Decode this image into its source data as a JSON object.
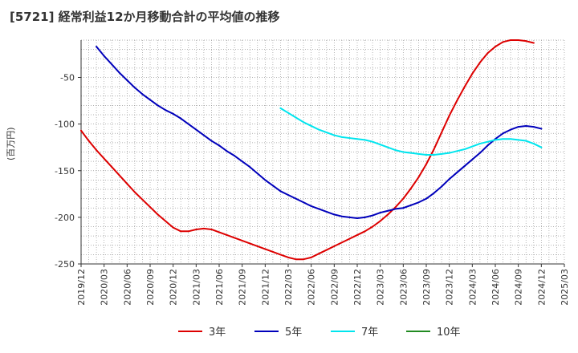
{
  "chart_data": {
    "type": "line",
    "title": "[5721]  経常利益12か月移動合計の平均値の推移",
    "xlabel": "",
    "ylabel": "(百万円)",
    "ylim": [
      -250,
      -10
    ],
    "yticks": [
      -50,
      -100,
      -150,
      -200,
      -250
    ],
    "xlim": [
      "2019-12",
      "2025-03"
    ],
    "xticks": [
      "2019/12",
      "2020/03",
      "2020/06",
      "2020/09",
      "2020/12",
      "2021/03",
      "2021/06",
      "2021/09",
      "2021/12",
      "2022/03",
      "2022/06",
      "2022/09",
      "2022/12",
      "2023/03",
      "2023/06",
      "2023/09",
      "2023/12",
      "2024/03",
      "2024/06",
      "2024/09",
      "2024/12",
      "2025/03"
    ],
    "grid": true,
    "legend_position": "bottom",
    "series": [
      {
        "name": "3年",
        "color": "#dd0000",
        "points": [
          [
            "2019-12",
            -107
          ],
          [
            "2020-01",
            -118
          ],
          [
            "2020-02",
            -128
          ],
          [
            "2020-03",
            -137
          ],
          [
            "2020-04",
            -146
          ],
          [
            "2020-05",
            -155
          ],
          [
            "2020-06",
            -164
          ],
          [
            "2020-07",
            -173
          ],
          [
            "2020-08",
            -181
          ],
          [
            "2020-09",
            -189
          ],
          [
            "2020-10",
            -197
          ],
          [
            "2020-11",
            -204
          ],
          [
            "2020-12",
            -211
          ],
          [
            "2021-01",
            -215
          ],
          [
            "2021-02",
            -215
          ],
          [
            "2021-03",
            -213
          ],
          [
            "2021-04",
            -212
          ],
          [
            "2021-05",
            -213
          ],
          [
            "2021-06",
            -216
          ],
          [
            "2021-07",
            -219
          ],
          [
            "2021-08",
            -222
          ],
          [
            "2021-09",
            -225
          ],
          [
            "2021-10",
            -228
          ],
          [
            "2021-11",
            -231
          ],
          [
            "2021-12",
            -234
          ],
          [
            "2022-01",
            -237
          ],
          [
            "2022-02",
            -240
          ],
          [
            "2022-03",
            -243
          ],
          [
            "2022-04",
            -245
          ],
          [
            "2022-05",
            -245
          ],
          [
            "2022-06",
            -243
          ],
          [
            "2022-07",
            -239
          ],
          [
            "2022-08",
            -235
          ],
          [
            "2022-09",
            -231
          ],
          [
            "2022-10",
            -227
          ],
          [
            "2022-11",
            -223
          ],
          [
            "2022-12",
            -219
          ],
          [
            "2023-01",
            -215
          ],
          [
            "2023-02",
            -210
          ],
          [
            "2023-03",
            -204
          ],
          [
            "2023-04",
            -197
          ],
          [
            "2023-05",
            -189
          ],
          [
            "2023-06",
            -180
          ],
          [
            "2023-07",
            -169
          ],
          [
            "2023-08",
            -157
          ],
          [
            "2023-09",
            -143
          ],
          [
            "2023-10",
            -127
          ],
          [
            "2023-11",
            -109
          ],
          [
            "2023-12",
            -91
          ],
          [
            "2024-01",
            -75
          ],
          [
            "2024-02",
            -60
          ],
          [
            "2024-03",
            -46
          ],
          [
            "2024-04",
            -34
          ],
          [
            "2024-05",
            -24
          ],
          [
            "2024-06",
            -17
          ],
          [
            "2024-07",
            -12
          ],
          [
            "2024-08",
            -10
          ],
          [
            "2024-09",
            -10
          ],
          [
            "2024-10",
            -11
          ],
          [
            "2024-11",
            -13
          ]
        ]
      },
      {
        "name": "5年",
        "color": "#0000bb",
        "points": [
          [
            "2020-02",
            -17
          ],
          [
            "2020-03",
            -27
          ],
          [
            "2020-04",
            -36
          ],
          [
            "2020-05",
            -45
          ],
          [
            "2020-06",
            -53
          ],
          [
            "2020-07",
            -61
          ],
          [
            "2020-08",
            -68
          ],
          [
            "2020-09",
            -74
          ],
          [
            "2020-10",
            -80
          ],
          [
            "2020-11",
            -85
          ],
          [
            "2020-12",
            -89
          ],
          [
            "2021-01",
            -94
          ],
          [
            "2021-02",
            -100
          ],
          [
            "2021-03",
            -106
          ],
          [
            "2021-04",
            -112
          ],
          [
            "2021-05",
            -118
          ],
          [
            "2021-06",
            -123
          ],
          [
            "2021-07",
            -129
          ],
          [
            "2021-08",
            -134
          ],
          [
            "2021-09",
            -140
          ],
          [
            "2021-10",
            -146
          ],
          [
            "2021-11",
            -153
          ],
          [
            "2021-12",
            -160
          ],
          [
            "2022-01",
            -166
          ],
          [
            "2022-02",
            -172
          ],
          [
            "2022-03",
            -176
          ],
          [
            "2022-04",
            -180
          ],
          [
            "2022-05",
            -184
          ],
          [
            "2022-06",
            -188
          ],
          [
            "2022-07",
            -191
          ],
          [
            "2022-08",
            -194
          ],
          [
            "2022-09",
            -197
          ],
          [
            "2022-10",
            -199
          ],
          [
            "2022-11",
            -200
          ],
          [
            "2022-12",
            -201
          ],
          [
            "2023-01",
            -200
          ],
          [
            "2023-02",
            -198
          ],
          [
            "2023-03",
            -195
          ],
          [
            "2023-04",
            -193
          ],
          [
            "2023-05",
            -191
          ],
          [
            "2023-06",
            -190
          ],
          [
            "2023-07",
            -187
          ],
          [
            "2023-08",
            -184
          ],
          [
            "2023-09",
            -180
          ],
          [
            "2023-10",
            -174
          ],
          [
            "2023-11",
            -167
          ],
          [
            "2023-12",
            -159
          ],
          [
            "2024-01",
            -152
          ],
          [
            "2024-02",
            -145
          ],
          [
            "2024-03",
            -138
          ],
          [
            "2024-04",
            -131
          ],
          [
            "2024-05",
            -123
          ],
          [
            "2024-06",
            -116
          ],
          [
            "2024-07",
            -110
          ],
          [
            "2024-08",
            -106
          ],
          [
            "2024-09",
            -103
          ],
          [
            "2024-10",
            -102
          ],
          [
            "2024-11",
            -103
          ],
          [
            "2024-12",
            -105
          ]
        ]
      },
      {
        "name": "7年",
        "color": "#00e5ee",
        "points": [
          [
            "2022-02",
            -83
          ],
          [
            "2022-03",
            -88
          ],
          [
            "2022-04",
            -93
          ],
          [
            "2022-05",
            -98
          ],
          [
            "2022-06",
            -102
          ],
          [
            "2022-07",
            -106
          ],
          [
            "2022-08",
            -109
          ],
          [
            "2022-09",
            -112
          ],
          [
            "2022-10",
            -114
          ],
          [
            "2022-11",
            -115
          ],
          [
            "2022-12",
            -116
          ],
          [
            "2023-01",
            -117
          ],
          [
            "2023-02",
            -119
          ],
          [
            "2023-03",
            -122
          ],
          [
            "2023-04",
            -125
          ],
          [
            "2023-05",
            -128
          ],
          [
            "2023-06",
            -130
          ],
          [
            "2023-07",
            -131
          ],
          [
            "2023-08",
            -132
          ],
          [
            "2023-09",
            -133
          ],
          [
            "2023-10",
            -133
          ],
          [
            "2023-11",
            -132
          ],
          [
            "2023-12",
            -131
          ],
          [
            "2024-01",
            -129
          ],
          [
            "2024-02",
            -127
          ],
          [
            "2024-03",
            -124
          ],
          [
            "2024-04",
            -121
          ],
          [
            "2024-05",
            -119
          ],
          [
            "2024-06",
            -117
          ],
          [
            "2024-07",
            -116
          ],
          [
            "2024-08",
            -116
          ],
          [
            "2024-09",
            -117
          ],
          [
            "2024-10",
            -118
          ],
          [
            "2024-11",
            -121
          ],
          [
            "2024-12",
            -125
          ]
        ]
      },
      {
        "name": "10年",
        "color": "#228b22",
        "points": []
      }
    ]
  }
}
